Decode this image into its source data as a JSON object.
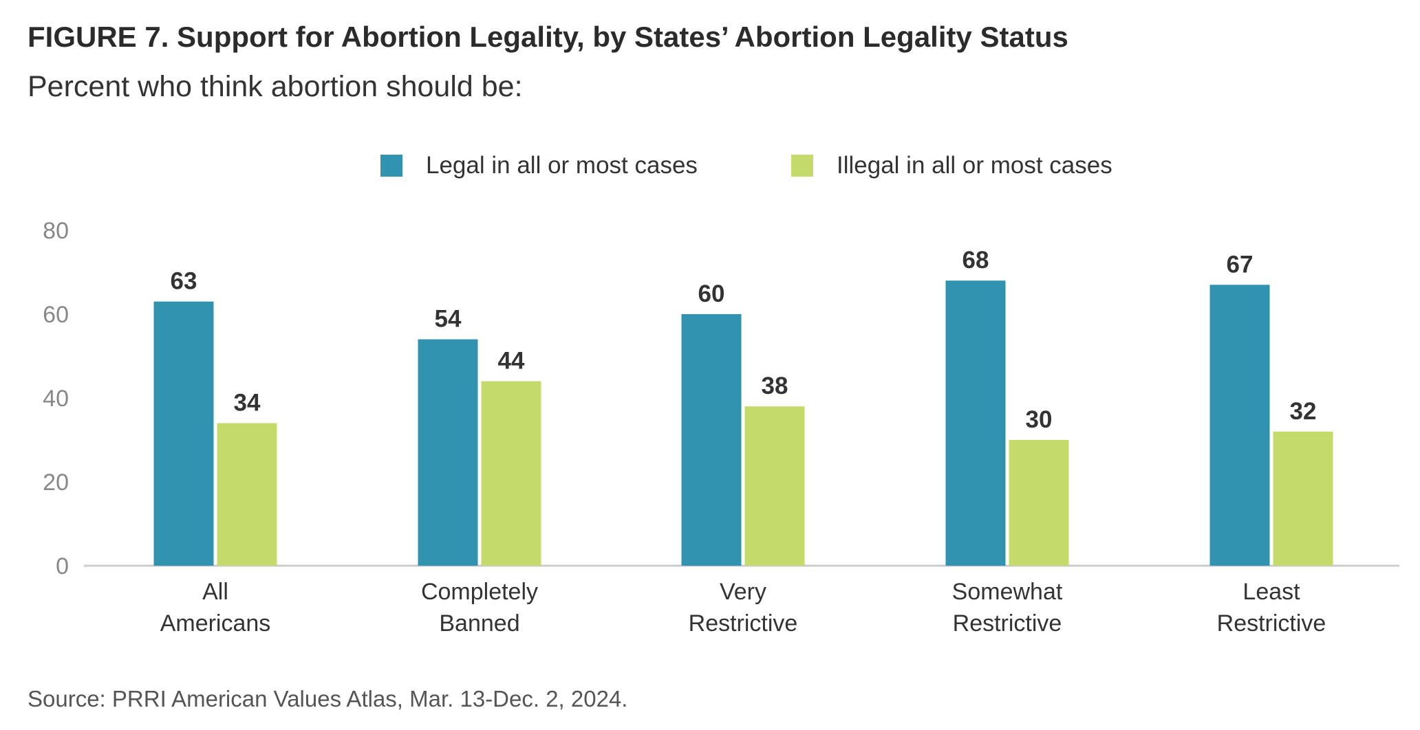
{
  "header": {
    "title": "FIGURE 7. Support for Abortion Legality, by States’ Abortion Legality Status",
    "subtitle": "Percent who think abortion should be:"
  },
  "legend": [
    {
      "label": "Legal in all or most cases",
      "color": "#3293b0"
    },
    {
      "label": "Illegal in all or most cases",
      "color": "#c4da6b"
    }
  ],
  "chart_data": {
    "type": "bar",
    "categories": [
      [
        "All",
        "Americans"
      ],
      [
        "Completely",
        "Banned"
      ],
      [
        "Very",
        "Restrictive"
      ],
      [
        "Somewhat",
        "Restrictive"
      ],
      [
        "Least",
        "Restrictive"
      ]
    ],
    "series": [
      {
        "name": "Legal in all or most cases",
        "color": "#3293b0",
        "values": [
          63,
          54,
          60,
          68,
          67
        ]
      },
      {
        "name": "Illegal in all or most cases",
        "color": "#c4da6b",
        "values": [
          34,
          44,
          38,
          30,
          32
        ]
      }
    ],
    "yticks": [
      0,
      20,
      40,
      60,
      80
    ],
    "ylim": [
      0,
      80
    ],
    "grid": false,
    "legend_position": "top-center",
    "data_labels": true
  },
  "footer": {
    "source": "Source: PRRI American Values Atlas, Mar. 13-Dec. 2, 2024."
  }
}
